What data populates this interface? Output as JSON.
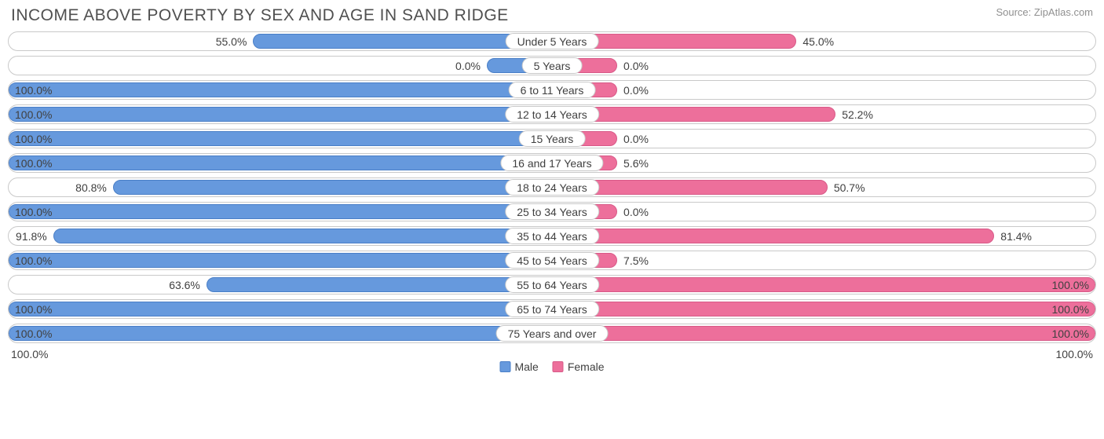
{
  "title": "INCOME ABOVE POVERTY BY SEX AND AGE IN SAND RIDGE",
  "source": "Source: ZipAtlas.com",
  "colors": {
    "male_fill": "#6699dd",
    "male_border": "#4a7fc7",
    "female_fill": "#ed6f9b",
    "female_border": "#d85a88",
    "row_border": "#c9c9c9",
    "text": "#404040"
  },
  "axis": {
    "left_label": "100.0%",
    "right_label": "100.0%",
    "max": 100.0
  },
  "legend": {
    "male": "Male",
    "female": "Female"
  },
  "min_bar_pct": 12,
  "rows": [
    {
      "category": "Under 5 Years",
      "male": 55.0,
      "male_label": "55.0%",
      "female": 45.0,
      "female_label": "45.0%"
    },
    {
      "category": "5 Years",
      "male": 0.0,
      "male_label": "0.0%",
      "female": 0.0,
      "female_label": "0.0%"
    },
    {
      "category": "6 to 11 Years",
      "male": 100.0,
      "male_label": "100.0%",
      "female": 0.0,
      "female_label": "0.0%"
    },
    {
      "category": "12 to 14 Years",
      "male": 100.0,
      "male_label": "100.0%",
      "female": 52.2,
      "female_label": "52.2%"
    },
    {
      "category": "15 Years",
      "male": 100.0,
      "male_label": "100.0%",
      "female": 0.0,
      "female_label": "0.0%"
    },
    {
      "category": "16 and 17 Years",
      "male": 100.0,
      "male_label": "100.0%",
      "female": 5.6,
      "female_label": "5.6%"
    },
    {
      "category": "18 to 24 Years",
      "male": 80.8,
      "male_label": "80.8%",
      "female": 50.7,
      "female_label": "50.7%"
    },
    {
      "category": "25 to 34 Years",
      "male": 100.0,
      "male_label": "100.0%",
      "female": 0.0,
      "female_label": "0.0%"
    },
    {
      "category": "35 to 44 Years",
      "male": 91.8,
      "male_label": "91.8%",
      "female": 81.4,
      "female_label": "81.4%"
    },
    {
      "category": "45 to 54 Years",
      "male": 100.0,
      "male_label": "100.0%",
      "female": 7.5,
      "female_label": "7.5%"
    },
    {
      "category": "55 to 64 Years",
      "male": 63.6,
      "male_label": "63.6%",
      "female": 100.0,
      "female_label": "100.0%"
    },
    {
      "category": "65 to 74 Years",
      "male": 100.0,
      "male_label": "100.0%",
      "female": 100.0,
      "female_label": "100.0%"
    },
    {
      "category": "75 Years and over",
      "male": 100.0,
      "male_label": "100.0%",
      "female": 100.0,
      "female_label": "100.0%"
    }
  ]
}
